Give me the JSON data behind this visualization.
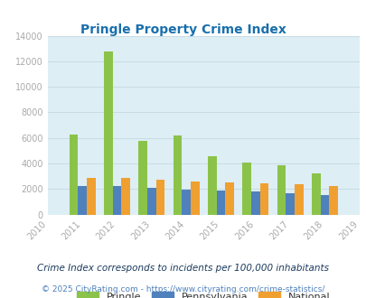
{
  "title": "Pringle Property Crime Index",
  "title_color": "#1a6fad",
  "years": [
    2010,
    2011,
    2012,
    2013,
    2014,
    2015,
    2016,
    2017,
    2018,
    2019
  ],
  "bar_years": [
    2011,
    2012,
    2013,
    2014,
    2015,
    2016,
    2017,
    2018
  ],
  "pringle": [
    6300,
    12800,
    5800,
    6200,
    4600,
    4050,
    3850,
    3250
  ],
  "pennsylvania": [
    2250,
    2250,
    2100,
    1950,
    1900,
    1800,
    1700,
    1550
  ],
  "national": [
    2900,
    2900,
    2700,
    2600,
    2550,
    2450,
    2350,
    2200
  ],
  "pringle_color": "#8bc34a",
  "pennsylvania_color": "#4f81bd",
  "national_color": "#f0a030",
  "bg_color": "#ddeef5",
  "ylim": [
    0,
    14000
  ],
  "yticks": [
    0,
    2000,
    4000,
    6000,
    8000,
    10000,
    12000,
    14000
  ],
  "legend_labels": [
    "Pringle",
    "Pennsylvania",
    "National"
  ],
  "footnote1": "Crime Index corresponds to incidents per 100,000 inhabitants",
  "footnote2": "© 2025 CityRating.com - https://www.cityrating.com/crime-statistics/",
  "bar_width": 0.25,
  "grid_color": "#c8dce4",
  "tick_color": "#aaaaaa",
  "footnote1_color": "#1a3a5c",
  "footnote2_color": "#4f81bd",
  "footnote2_url_color": "#4f81bd"
}
